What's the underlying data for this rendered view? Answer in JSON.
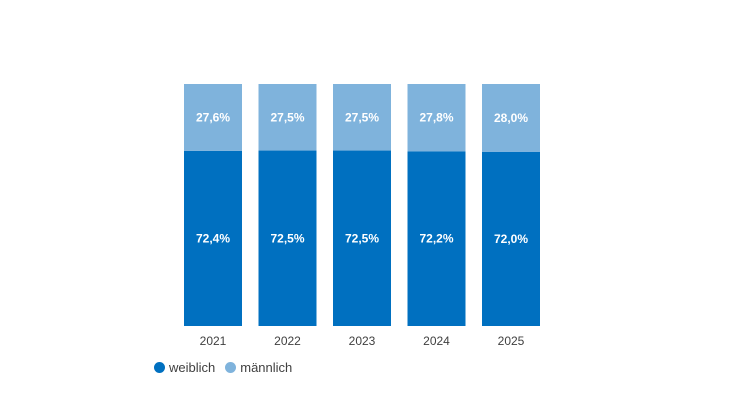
{
  "chart_data": {
    "type": "bar",
    "stacked": true,
    "categories": [
      "2021",
      "2022",
      "2023",
      "2024",
      "2025"
    ],
    "series": [
      {
        "name": "weiblich",
        "color": "#0070c0",
        "values": [
          72.4,
          72.5,
          72.5,
          72.2,
          72.0
        ],
        "labels": [
          "72,4%",
          "72,5%",
          "72,5%",
          "72,2%",
          "72,0%"
        ]
      },
      {
        "name": "männlich",
        "color": "#7fb3dc",
        "values": [
          27.6,
          27.5,
          27.5,
          27.8,
          28.0
        ],
        "labels": [
          "27,6%",
          "27,5%",
          "27,5%",
          "27,8%",
          "28,0%"
        ]
      }
    ],
    "title": "",
    "xlabel": "",
    "ylabel": "",
    "ylim": [
      0,
      100
    ],
    "grid": false,
    "legend_position": "bottom-left"
  }
}
